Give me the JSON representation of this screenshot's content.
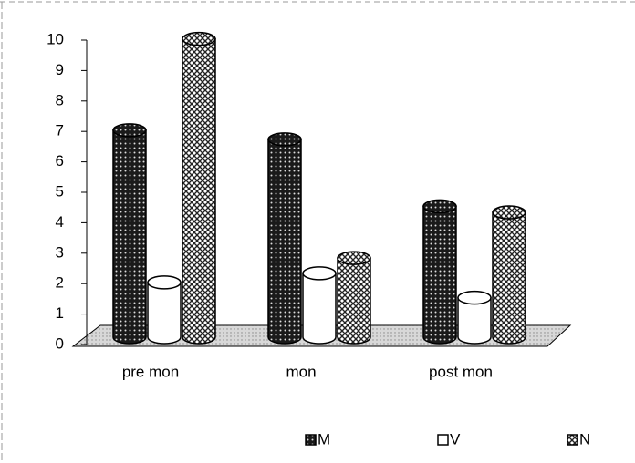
{
  "chart_data": {
    "type": "bar3d",
    "categories": [
      "pre mon",
      "mon",
      "post mon"
    ],
    "series": [
      {
        "name": "M",
        "color": "#222222",
        "values": [
          6.8,
          6.5,
          4.3
        ]
      },
      {
        "name": "V",
        "color": "#ffffff",
        "values": [
          1.8,
          2.1,
          1.3
        ]
      },
      {
        "name": "N",
        "color": "#bbbbbb",
        "values": [
          9.8,
          2.6,
          4.1
        ]
      }
    ],
    "ylim": [
      0,
      10
    ],
    "yticks": [
      0,
      1,
      2,
      3,
      4,
      5,
      6,
      7,
      8,
      9,
      10
    ],
    "grid": false,
    "legend": "bottom"
  }
}
